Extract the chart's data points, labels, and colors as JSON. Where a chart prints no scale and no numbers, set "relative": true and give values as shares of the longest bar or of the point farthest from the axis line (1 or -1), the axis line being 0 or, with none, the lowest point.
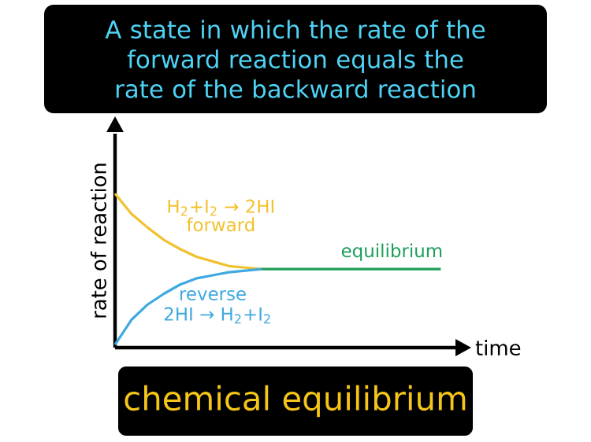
{
  "chart_data": {
    "type": "line",
    "relative": true,
    "title": "chemical equilibrium",
    "subtitle": "A state in which the rate of the forward reaction equals the rate of the backward reaction",
    "xlabel": "time",
    "ylabel": "rate of reaction",
    "categories": [
      null,
      null,
      null,
      null,
      null,
      null,
      null,
      null,
      null,
      null,
      null,
      null,
      null,
      null,
      null,
      null,
      null,
      null,
      null,
      null,
      null
    ],
    "series": [
      {
        "name": "forward",
        "color": "#f2c12e",
        "values": [
          1,
          0.87,
          0.78,
          0.7,
          0.64,
          0.59,
          0.56,
          0.53,
          0.52,
          0.51,
          null,
          null,
          null,
          null,
          null,
          null,
          null,
          null,
          null,
          null,
          null
        ]
      },
      {
        "name": "reverse",
        "color": "#3fa9e0",
        "values": [
          0.02,
          0.18,
          0.28,
          0.35,
          0.41,
          0.45,
          0.47,
          0.49,
          0.5,
          0.51,
          null,
          null,
          null,
          null,
          null,
          null,
          null,
          null,
          null,
          null,
          null
        ]
      },
      {
        "name": "equilibrium",
        "color": "#1e9e5a",
        "values": [
          null,
          null,
          null,
          null,
          null,
          null,
          null,
          null,
          null,
          0.51,
          0.51,
          0.51,
          0.51,
          0.51,
          0.51,
          0.51,
          0.51,
          0.51,
          0.51,
          0.51,
          0.51
        ]
      }
    ],
    "annotations": [
      "H$_{2}$+I$_{2}$ → 2HI",
      "2HI → H$_{2}$+I$_{2}$"
    ]
  }
}
